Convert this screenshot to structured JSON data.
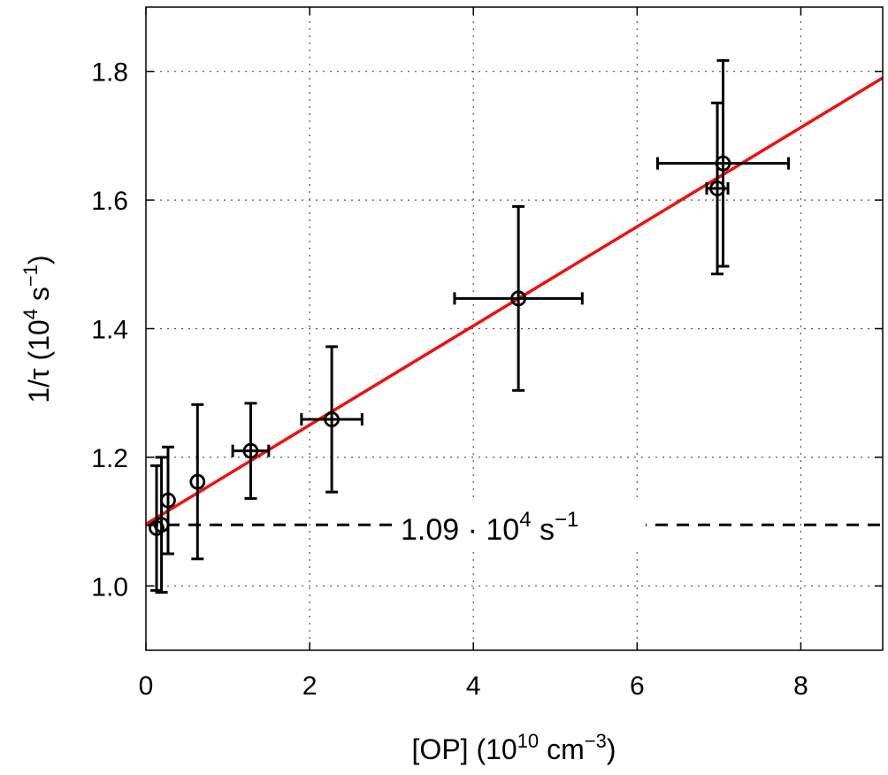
{
  "chart_data": {
    "type": "scatter",
    "xlabel": {
      "main": "[OP] (10",
      "exp": "10",
      "tail": " cm",
      "tail_exp": "−3",
      "close": ")"
    },
    "ylabel": {
      "main": "1/τ (10",
      "exp": "4",
      "tail": " s",
      "tail_exp": "−1",
      "close": ")"
    },
    "xlim": [
      0,
      9
    ],
    "ylim": [
      0.9,
      1.9
    ],
    "xticks": [
      0,
      2,
      4,
      6,
      8
    ],
    "xtick_labels": [
      "0",
      "2",
      "4",
      "6",
      "8"
    ],
    "yticks": [
      1.0,
      1.2,
      1.4,
      1.6,
      1.8
    ],
    "ytick_labels": [
      "1.0",
      "1.2",
      "1.4",
      "1.6",
      "1.8"
    ],
    "grid": true,
    "points": [
      {
        "x": 0.13,
        "y": 1.09,
        "xerr": 0.0,
        "yerr": 0.097
      },
      {
        "x": 0.19,
        "y": 1.095,
        "xerr": 0.0,
        "yerr": 0.105
      },
      {
        "x": 0.27,
        "y": 1.133,
        "xerr": 0.0,
        "yerr": 0.083
      },
      {
        "x": 0.63,
        "y": 1.162,
        "xerr": 0.0,
        "yerr": 0.12
      },
      {
        "x": 1.28,
        "y": 1.21,
        "xerr": 0.22,
        "yerr": 0.074
      },
      {
        "x": 2.27,
        "y": 1.259,
        "xerr": 0.37,
        "yerr": 0.113
      },
      {
        "x": 4.55,
        "y": 1.447,
        "xerr": 0.78,
        "yerr": 0.143
      },
      {
        "x": 6.98,
        "y": 1.618,
        "xerr": 0.13,
        "yerr": 0.133
      },
      {
        "x": 7.05,
        "y": 1.657,
        "xerr": 0.8,
        "yerr": 0.16
      }
    ],
    "fit_line": {
      "intercept": 1.096,
      "slope": 0.0771,
      "color": "#ee1111"
    },
    "baseline": {
      "y": 1.095,
      "label_main": "1.09 · 10",
      "label_exp": "4",
      "label_tail": " s",
      "label_tail_exp": "−1"
    }
  }
}
